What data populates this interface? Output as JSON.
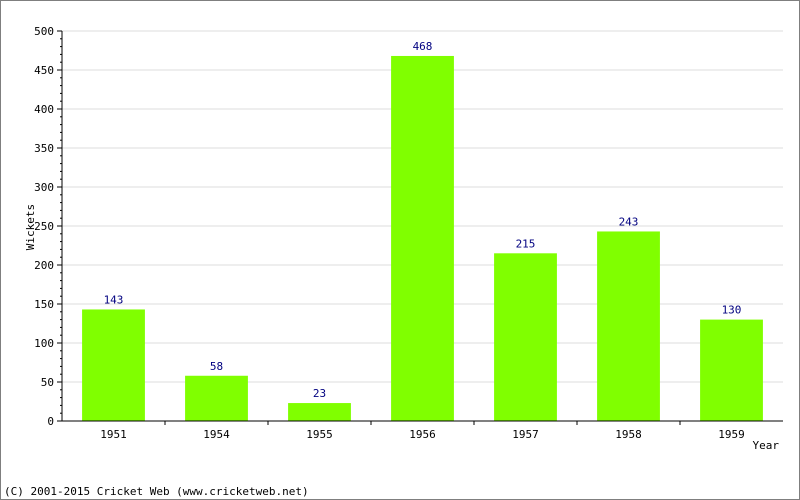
{
  "chart_data": {
    "type": "bar",
    "categories": [
      "1951",
      "1954",
      "1955",
      "1956",
      "1957",
      "1958",
      "1959"
    ],
    "values": [
      143,
      58,
      23,
      468,
      215,
      243,
      130
    ],
    "xlabel": "Year",
    "ylabel": "Wickets",
    "ylim": [
      0,
      500
    ],
    "yticks": [
      0,
      50,
      100,
      150,
      200,
      250,
      300,
      350,
      400,
      450,
      500
    ],
    "grid": true,
    "bar_color": "#80ff00",
    "value_label_color": "#000080",
    "show_value_labels": true
  },
  "footer": {
    "copyright": "(C) 2001-2015 Cricket Web (www.cricketweb.net)"
  }
}
